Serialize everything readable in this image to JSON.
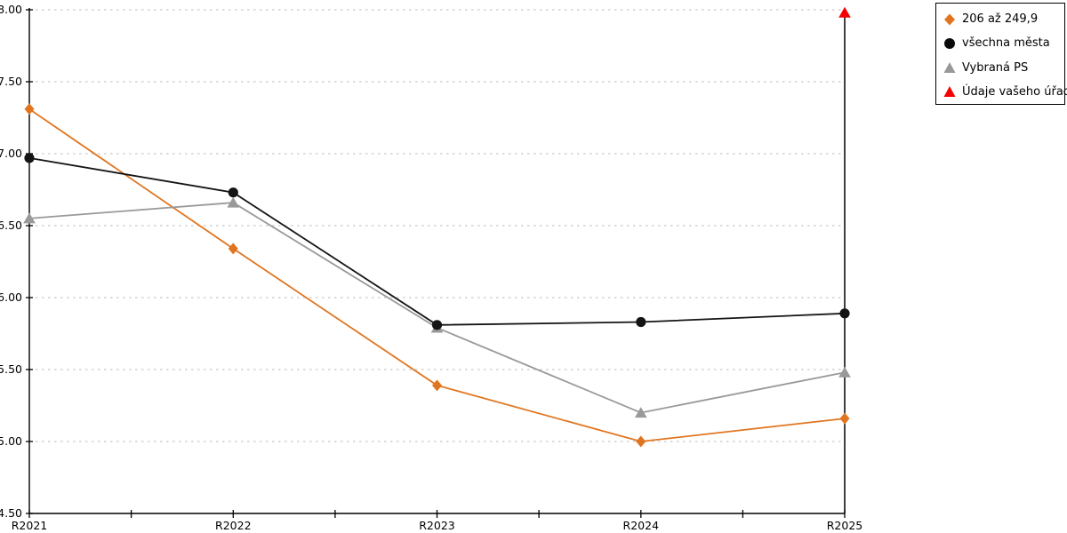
{
  "legend": {
    "items": [
      {
        "label": "206 až 249,9",
        "marker": "diamond",
        "color": "#e1751f"
      },
      {
        "label": "všechna města",
        "marker": "circle",
        "color": "#0a0a0a"
      },
      {
        "label": "Vybraná PS",
        "marker": "triangle",
        "color": "#999999"
      },
      {
        "label": "Údaje vašeho úřadu",
        "marker": "triangle",
        "color": "#f40000"
      }
    ],
    "border_color": "#000000"
  },
  "chart_data": {
    "type": "line",
    "title": "",
    "xlabel": "",
    "ylabel": "",
    "categories": [
      "R2021",
      "R2022",
      "R2023",
      "R2024",
      "R2025"
    ],
    "series": [
      {
        "name": "206 až 249,9",
        "marker": "diamond",
        "color": "#e1751f",
        "values": [
          7.31,
          6.34,
          5.39,
          5.0,
          5.16
        ]
      },
      {
        "name": "všechna města",
        "marker": "circle",
        "color": "#141414",
        "values": [
          6.97,
          6.73,
          5.81,
          5.83,
          5.89
        ]
      },
      {
        "name": "Vybraná PS",
        "marker": "triangle",
        "color": "#999999",
        "values": [
          6.55,
          6.66,
          5.79,
          5.2,
          5.48
        ]
      },
      {
        "name": "Údaje vašeho úřadu",
        "marker": "triangle",
        "color": "#f40000",
        "values": [
          null,
          null,
          null,
          null,
          7.98
        ],
        "style": "stem",
        "stem_color": "#000000"
      }
    ],
    "ylim": [
      4.5,
      8.0
    ],
    "ytick_step": 0.5,
    "ytick_format": "0.00",
    "grid": "horizontal-dotted",
    "grid_color": "#c8c8c8",
    "axis_color": "#000000",
    "legend_position": "top-right",
    "x_minor_ticks": "midpoints"
  }
}
